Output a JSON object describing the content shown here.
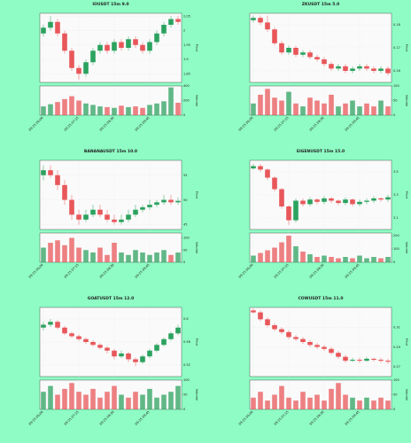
{
  "chart_data": [
    {
      "type": "candlestick",
      "title": "IOUSDT 15m 9.0",
      "y_label": "Price",
      "volume_label": "Volume",
      "open": [
        1.99,
        2.01,
        2.03,
        1.99,
        1.93,
        1.87,
        1.85,
        1.89,
        1.93,
        1.95,
        1.93,
        1.96,
        1.94,
        1.97,
        1.95,
        1.93,
        1.96,
        1.99,
        2.02,
        2.04
      ],
      "high": [
        2.02,
        2.05,
        2.04,
        2.0,
        1.94,
        1.88,
        1.9,
        1.94,
        1.96,
        1.96,
        1.97,
        1.97,
        1.98,
        1.98,
        1.96,
        1.97,
        2.0,
        2.03,
        2.05,
        2.05
      ],
      "low": [
        1.98,
        2.0,
        1.98,
        1.92,
        1.86,
        1.83,
        1.84,
        1.88,
        1.92,
        1.92,
        1.92,
        1.93,
        1.93,
        1.94,
        1.92,
        1.92,
        1.95,
        1.98,
        2.01,
        2.02
      ],
      "close": [
        2.01,
        2.03,
        1.99,
        1.93,
        1.87,
        1.85,
        1.89,
        1.93,
        1.95,
        1.93,
        1.96,
        1.94,
        1.97,
        1.95,
        1.93,
        1.96,
        1.99,
        2.02,
        2.04,
        2.03
      ],
      "volume": [
        120,
        150,
        180,
        220,
        260,
        200,
        160,
        140,
        120,
        110,
        100,
        130,
        110,
        120,
        100,
        140,
        160,
        190,
        380,
        170
      ],
      "ylim": [
        1.82,
        2.06
      ],
      "yticks": [
        1.85,
        1.9,
        1.95,
        2.0,
        2.05
      ],
      "vlim": [
        0,
        400
      ],
      "vticks": [
        0,
        200,
        400
      ],
      "xticks": [
        {
          "value": 0,
          "label": "09-25 06:00"
        },
        {
          "value": 5,
          "label": "09-25 07:15"
        },
        {
          "value": 10,
          "label": "09-25 08:30"
        },
        {
          "value": 15,
          "label": "09-25 09:45"
        }
      ],
      "up_color": "#2ca25f",
      "down_color": "#e8575a"
    },
    {
      "type": "candlestick",
      "title": "ZKUSDT 15m 5.0",
      "y_label": "Price",
      "volume_label": "Volume",
      "open": [
        0.182,
        0.183,
        0.181,
        0.178,
        0.172,
        0.168,
        0.17,
        0.167,
        0.168,
        0.166,
        0.165,
        0.163,
        0.161,
        0.162,
        0.16,
        0.161,
        0.162,
        0.161,
        0.16,
        0.161
      ],
      "high": [
        0.184,
        0.184,
        0.184,
        0.179,
        0.173,
        0.171,
        0.171,
        0.169,
        0.169,
        0.167,
        0.166,
        0.164,
        0.163,
        0.163,
        0.162,
        0.163,
        0.163,
        0.162,
        0.162,
        0.162
      ],
      "low": [
        0.181,
        0.18,
        0.177,
        0.171,
        0.167,
        0.167,
        0.166,
        0.166,
        0.165,
        0.164,
        0.162,
        0.16,
        0.16,
        0.159,
        0.159,
        0.16,
        0.16,
        0.159,
        0.159,
        0.158
      ],
      "close": [
        0.183,
        0.181,
        0.178,
        0.172,
        0.168,
        0.17,
        0.167,
        0.168,
        0.166,
        0.165,
        0.163,
        0.161,
        0.162,
        0.16,
        0.161,
        0.162,
        0.161,
        0.16,
        0.161,
        0.159
      ],
      "volume": [
        40,
        70,
        90,
        60,
        50,
        80,
        40,
        30,
        60,
        50,
        40,
        70,
        30,
        40,
        50,
        30,
        40,
        30,
        50,
        30
      ],
      "ylim": [
        0.155,
        0.185
      ],
      "yticks": [
        0.16,
        0.17,
        0.18
      ],
      "vlim": [
        0,
        100
      ],
      "vticks": [
        0,
        50,
        100
      ],
      "xticks": [
        {
          "value": 0,
          "label": "09-25 06:00"
        },
        {
          "value": 5,
          "label": "09-25 07:15"
        },
        {
          "value": 10,
          "label": "09-25 08:30"
        },
        {
          "value": 15,
          "label": "09-25 09:45"
        }
      ],
      "up_color": "#2ca25f",
      "down_color": "#e8575a"
    },
    {
      "type": "candlestick",
      "title": "BANANAUSDT 15m 10.0",
      "y_label": "Price",
      "volume_label": "Volume",
      "open": [
        55,
        56,
        55,
        53,
        50,
        47,
        46,
        47,
        48,
        47,
        46,
        45.5,
        46,
        47,
        48,
        48.5,
        49,
        49.5,
        50,
        49.5
      ],
      "high": [
        57,
        57,
        56,
        54,
        51,
        48,
        48,
        49,
        49,
        48,
        47,
        47,
        48,
        49,
        49,
        50,
        50,
        51,
        51,
        50.5
      ],
      "low": [
        54,
        54.5,
        52,
        49,
        46,
        45,
        45.5,
        46.5,
        46.5,
        45.5,
        45,
        45,
        45.5,
        46.5,
        47.5,
        48,
        48.5,
        49,
        49,
        49
      ],
      "close": [
        56,
        55,
        53,
        50,
        47,
        46,
        47,
        48,
        47,
        46,
        45.5,
        46,
        47,
        48,
        48.5,
        49,
        49.5,
        50,
        49.5,
        49.8
      ],
      "volume": [
        60,
        80,
        90,
        70,
        100,
        60,
        50,
        40,
        60,
        30,
        80,
        40,
        30,
        50,
        40,
        30,
        40,
        50,
        30,
        40
      ],
      "ylim": [
        44,
        58
      ],
      "yticks": [
        45,
        50,
        55
      ],
      "vlim": [
        0,
        120
      ],
      "vticks": [
        0,
        50,
        100
      ],
      "xticks": [
        {
          "value": 0,
          "label": "09-25 06:00"
        },
        {
          "value": 5,
          "label": "09-25 07:15"
        },
        {
          "value": 10,
          "label": "09-25 08:30"
        },
        {
          "value": 15,
          "label": "09-25 09:45"
        }
      ],
      "up_color": "#2ca25f",
      "down_color": "#e8575a"
    },
    {
      "type": "candlestick",
      "title": "EIGENUSDT 15m 15.0",
      "y_label": "Price",
      "volume_label": "Volume",
      "open": [
        3.53,
        3.55,
        3.52,
        3.45,
        3.35,
        3.2,
        3.08,
        3.25,
        3.22,
        3.26,
        3.24,
        3.27,
        3.25,
        3.23,
        3.26,
        3.22,
        3.24,
        3.25,
        3.27,
        3.26
      ],
      "high": [
        3.57,
        3.57,
        3.53,
        3.46,
        3.36,
        3.21,
        3.27,
        3.27,
        3.28,
        3.27,
        3.29,
        3.28,
        3.26,
        3.28,
        3.27,
        3.26,
        3.27,
        3.29,
        3.28,
        3.3
      ],
      "low": [
        3.52,
        3.5,
        3.43,
        3.33,
        3.18,
        3.04,
        3.06,
        3.2,
        3.2,
        3.22,
        3.22,
        3.23,
        3.21,
        3.21,
        3.2,
        3.2,
        3.22,
        3.23,
        3.24,
        3.24
      ],
      "close": [
        3.55,
        3.52,
        3.45,
        3.35,
        3.2,
        3.08,
        3.25,
        3.22,
        3.26,
        3.24,
        3.27,
        3.25,
        3.23,
        3.26,
        3.22,
        3.24,
        3.25,
        3.27,
        3.26,
        3.28
      ],
      "volume": [
        50,
        70,
        90,
        110,
        150,
        200,
        120,
        80,
        60,
        40,
        50,
        40,
        30,
        40,
        30,
        50,
        30,
        40,
        30,
        40
      ],
      "ylim": [
        3.0,
        3.6
      ],
      "yticks": [
        3.1,
        3.3,
        3.5
      ],
      "vlim": [
        0,
        220
      ],
      "vticks": [
        0,
        100,
        200
      ],
      "xticks": [
        {
          "value": 0,
          "label": "09-25 06:00"
        },
        {
          "value": 5,
          "label": "09-25 07:15"
        },
        {
          "value": 10,
          "label": "09-25 08:30"
        },
        {
          "value": 15,
          "label": "09-25 09:45"
        }
      ],
      "up_color": "#2ca25f",
      "down_color": "#e8575a"
    },
    {
      "type": "candlestick",
      "title": "GOATUSDT 15m 12.0",
      "y_label": "Price",
      "volume_label": "Volume",
      "open": [
        0.585,
        0.59,
        0.595,
        0.585,
        0.575,
        0.57,
        0.565,
        0.56,
        0.555,
        0.55,
        0.545,
        0.535,
        0.54,
        0.53,
        0.525,
        0.535,
        0.545,
        0.555,
        0.565,
        0.575
      ],
      "high": [
        0.595,
        0.6,
        0.598,
        0.588,
        0.578,
        0.573,
        0.568,
        0.563,
        0.558,
        0.553,
        0.548,
        0.545,
        0.543,
        0.533,
        0.538,
        0.548,
        0.558,
        0.568,
        0.578,
        0.59
      ],
      "low": [
        0.58,
        0.586,
        0.582,
        0.572,
        0.567,
        0.562,
        0.557,
        0.552,
        0.547,
        0.54,
        0.53,
        0.532,
        0.525,
        0.518,
        0.522,
        0.532,
        0.542,
        0.552,
        0.562,
        0.572
      ],
      "close": [
        0.59,
        0.595,
        0.585,
        0.575,
        0.57,
        0.565,
        0.56,
        0.555,
        0.55,
        0.545,
        0.535,
        0.54,
        0.53,
        0.525,
        0.535,
        0.545,
        0.555,
        0.565,
        0.575,
        0.585
      ],
      "volume": [
        60,
        80,
        50,
        70,
        90,
        60,
        50,
        70,
        40,
        60,
        80,
        50,
        40,
        60,
        50,
        70,
        40,
        50,
        60,
        80
      ],
      "ylim": [
        0.5,
        0.62
      ],
      "yticks": [
        0.52,
        0.56,
        0.6
      ],
      "vlim": [
        0,
        100
      ],
      "vticks": [
        0,
        50,
        100
      ],
      "xticks": [
        {
          "value": 0,
          "label": "09-25 06:00"
        },
        {
          "value": 5,
          "label": "09-25 07:15"
        },
        {
          "value": 10,
          "label": "09-25 08:30"
        },
        {
          "value": 15,
          "label": "09-25 09:45"
        }
      ],
      "up_color": "#2ca25f",
      "down_color": "#e8575a"
    },
    {
      "type": "candlestick",
      "title": "COWUSDT 15m 11.0",
      "y_label": "Price",
      "volume_label": "Volume",
      "open": [
        0.327,
        0.325,
        0.318,
        0.312,
        0.308,
        0.305,
        0.3,
        0.298,
        0.295,
        0.292,
        0.29,
        0.288,
        0.284,
        0.28,
        0.276,
        0.277,
        0.276,
        0.278,
        0.277,
        0.276
      ],
      "high": [
        0.329,
        0.327,
        0.32,
        0.314,
        0.31,
        0.307,
        0.302,
        0.3,
        0.297,
        0.294,
        0.292,
        0.29,
        0.286,
        0.282,
        0.279,
        0.279,
        0.28,
        0.279,
        0.279,
        0.278
      ],
      "low": [
        0.324,
        0.316,
        0.31,
        0.306,
        0.303,
        0.298,
        0.296,
        0.293,
        0.29,
        0.288,
        0.286,
        0.282,
        0.278,
        0.274,
        0.275,
        0.274,
        0.275,
        0.275,
        0.274,
        0.273
      ],
      "close": [
        0.325,
        0.318,
        0.312,
        0.308,
        0.305,
        0.3,
        0.298,
        0.295,
        0.292,
        0.29,
        0.288,
        0.284,
        0.28,
        0.276,
        0.277,
        0.276,
        0.278,
        0.277,
        0.276,
        0.275
      ],
      "volume": [
        40,
        60,
        30,
        50,
        80,
        40,
        30,
        60,
        40,
        50,
        30,
        70,
        90,
        50,
        40,
        30,
        40,
        30,
        40,
        30
      ],
      "ylim": [
        0.26,
        0.33
      ],
      "yticks": [
        0.27,
        0.29,
        0.31
      ],
      "vlim": [
        0,
        100
      ],
      "vticks": [
        0,
        50,
        100
      ],
      "xticks": [
        {
          "value": 0,
          "label": "09-25 06:00"
        },
        {
          "value": 5,
          "label": "09-25 07:15"
        },
        {
          "value": 10,
          "label": "09-25 08:30"
        },
        {
          "value": 15,
          "label": "09-25 09:45"
        }
      ],
      "up_color": "#2ca25f",
      "down_color": "#e8575a"
    }
  ]
}
